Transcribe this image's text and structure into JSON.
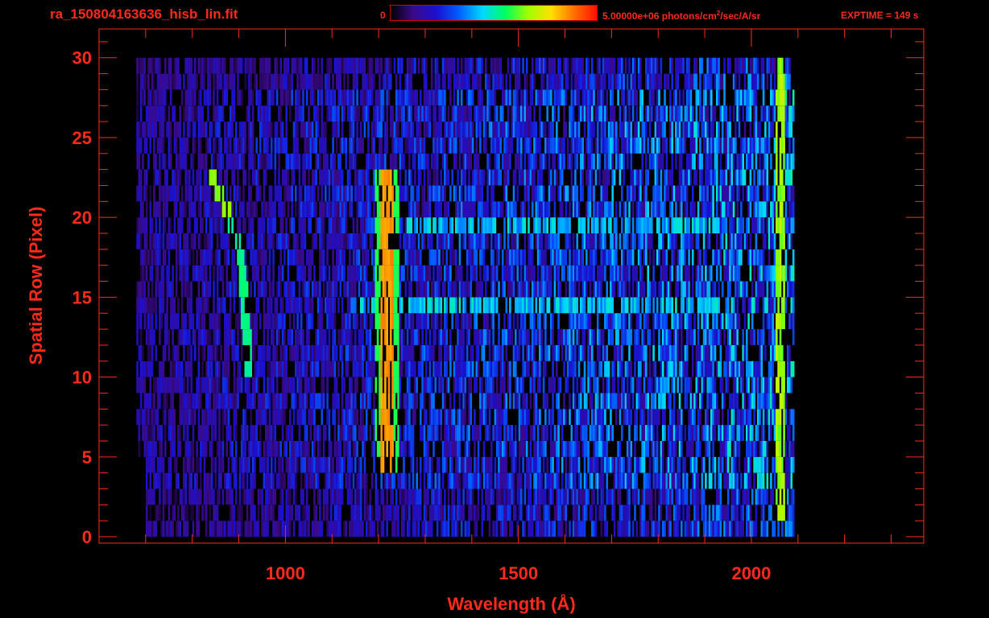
{
  "header": {
    "file_name": "ra_150804163636_hisb_lin.fit",
    "colorbar_min": "0",
    "colorbar_max_prefix": "5.00000e+06 photons/cm",
    "colorbar_max_sup": "2",
    "colorbar_max_suffix": "/sec/A/sr",
    "exposure_time": "EXPTIME = 149 s"
  },
  "colors": {
    "axis": "#ff2a1a",
    "background": "#000000",
    "colormap": [
      "#000000",
      "#3a0a8a",
      "#1a10d0",
      "#0060ff",
      "#00d8ff",
      "#00ff60",
      "#a0ff00",
      "#ffe000",
      "#ff7000",
      "#ff1000"
    ]
  },
  "chart_data": {
    "type": "heatmap",
    "title": "",
    "xlabel": "Wavelength (Å)",
    "ylabel": "Spatial Row (Pixel)",
    "xlim": [
      600,
      2370
    ],
    "ylim": [
      -0.4,
      31.8
    ],
    "x_ticks": [
      1000,
      1500,
      2000
    ],
    "y_ticks": [
      0,
      5,
      10,
      15,
      20,
      25,
      30
    ],
    "x_minor_step": 100,
    "y_minor_step": 1,
    "colorbar_range": [
      0,
      5000000
    ],
    "colorbar_unit": "photons/cm^2/sec/A/sr",
    "exposure_seconds": 149,
    "grid": false,
    "features": [
      {
        "kind": "emission_line",
        "wavelength": 1216,
        "rows": [
          5,
          23
        ],
        "level": 0.82
      },
      {
        "kind": "curved_line",
        "wavelength_top": 840,
        "wavelength_bottom": 915,
        "rows": [
          11,
          23
        ],
        "level": 0.5
      },
      {
        "kind": "band",
        "row": 20,
        "wavelength_range": [
          1260,
          1930
        ],
        "level": 0.45
      },
      {
        "kind": "band",
        "row": 15,
        "wavelength_range": [
          1140,
          1950
        ],
        "level": 0.45
      },
      {
        "kind": "edge_line",
        "wavelength": 2060,
        "rows": [
          2,
          30
        ],
        "level": 0.62
      }
    ]
  }
}
